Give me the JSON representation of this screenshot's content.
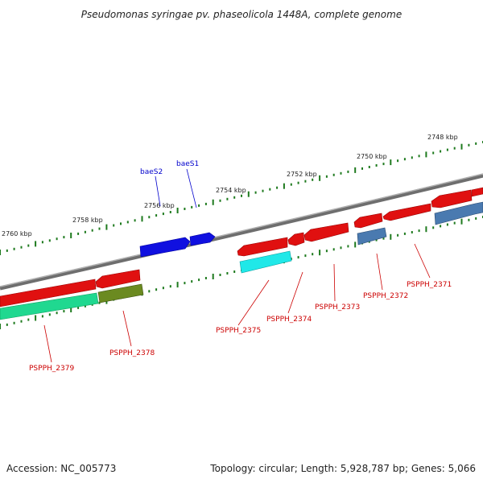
{
  "title": "Pseudomonas syringae pv. phaseolicola 1448A, complete genome",
  "footer": {
    "accession": "Accession: NC_005773",
    "info": "Topology: circular; Length: 5,928,787 bp; Genes: 5,066"
  },
  "scale": {
    "labels": [
      "2748 kbp",
      "2750 kbp",
      "2752 kbp",
      "2754 kbp",
      "2756 kbp",
      "2758 kbp",
      "2760 kbp"
    ]
  },
  "colors": {
    "backbone": "#8a8a8a",
    "tick": "#1e7a1e",
    "red_gene": "#e01010",
    "blue_gene": "#1010e0",
    "cyan_gene": "#20e8e8",
    "steel_gene": "#4a7ab0",
    "green_gene": "#20d890",
    "olive_gene": "#6b8a20",
    "label_red": "#cc0000",
    "label_blue": "#0000cc"
  },
  "genes": [
    {
      "name": "PSPPH_2371"
    },
    {
      "name": "PSPPH_2372"
    },
    {
      "name": "PSPPH_2373"
    },
    {
      "name": "PSPPH_2374"
    },
    {
      "name": "PSPPH_2375"
    },
    {
      "name": "PSPPH_2378"
    },
    {
      "name": "PSPPH_2379"
    },
    {
      "name": "baeS1"
    },
    {
      "name": "baeS2"
    }
  ]
}
